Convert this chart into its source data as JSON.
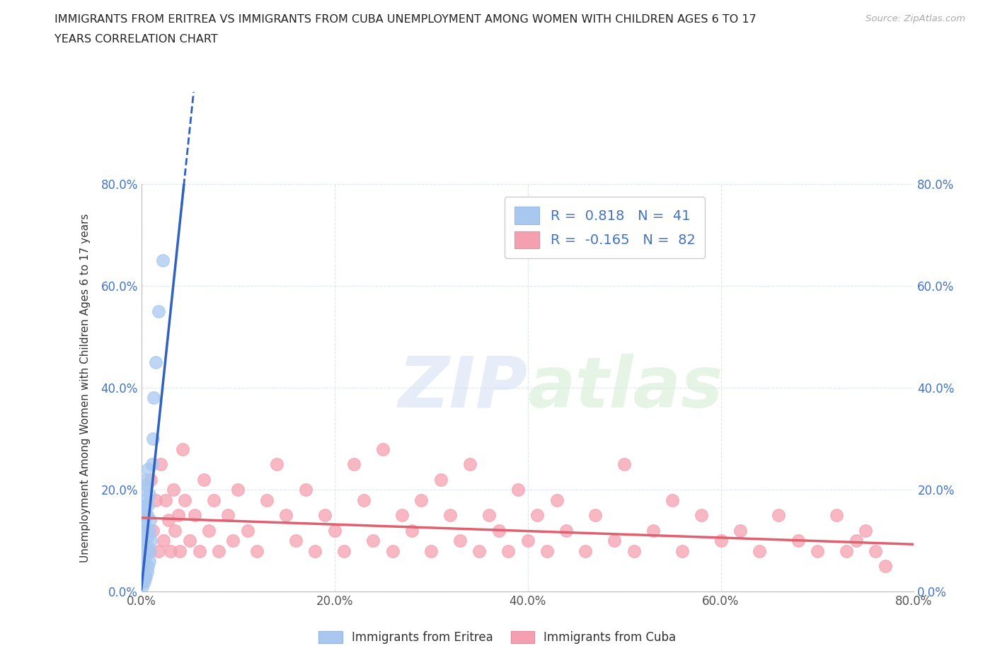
{
  "title_line1": "IMMIGRANTS FROM ERITREA VS IMMIGRANTS FROM CUBA UNEMPLOYMENT AMONG WOMEN WITH CHILDREN AGES 6 TO 17",
  "title_line2": "YEARS CORRELATION CHART",
  "source": "Source: ZipAtlas.com",
  "ylabel": "Unemployment Among Women with Children Ages 6 to 17 years",
  "xlim": [
    0.0,
    0.8
  ],
  "ylim": [
    0.0,
    0.8
  ],
  "xticks": [
    0.0,
    0.2,
    0.4,
    0.6,
    0.8
  ],
  "yticks": [
    0.0,
    0.2,
    0.4,
    0.6,
    0.8
  ],
  "tick_labels": [
    "0.0%",
    "20.0%",
    "40.0%",
    "60.0%",
    "80.0%"
  ],
  "eritrea_color": "#a8c8f0",
  "cuba_color": "#f5a0b0",
  "eritrea_R": 0.818,
  "eritrea_N": 41,
  "cuba_R": -0.165,
  "cuba_N": 82,
  "eritrea_line_color": "#3060c0",
  "cuba_line_color": "#e06070",
  "background_color": "#ffffff",
  "grid_color": "#d8e0f0",
  "watermark": "ZIPatlas",
  "legend_eritrea": "Immigrants from Eritrea",
  "legend_cuba": "Immigrants from Cuba",
  "eritrea_slope": 18.0,
  "eritrea_intercept": 0.005,
  "cuba_slope": -0.065,
  "cuba_intercept": 0.145,
  "eritrea_x": [
    0.001,
    0.001,
    0.001,
    0.002,
    0.002,
    0.002,
    0.002,
    0.003,
    0.003,
    0.003,
    0.003,
    0.003,
    0.004,
    0.004,
    0.004,
    0.004,
    0.005,
    0.005,
    0.005,
    0.005,
    0.005,
    0.006,
    0.006,
    0.006,
    0.006,
    0.007,
    0.007,
    0.007,
    0.007,
    0.008,
    0.008,
    0.008,
    0.009,
    0.009,
    0.01,
    0.011,
    0.012,
    0.013,
    0.015,
    0.018,
    0.022
  ],
  "eritrea_y": [
    0.01,
    0.04,
    0.07,
    0.02,
    0.05,
    0.09,
    0.13,
    0.02,
    0.06,
    0.1,
    0.15,
    0.2,
    0.03,
    0.08,
    0.13,
    0.18,
    0.03,
    0.07,
    0.12,
    0.17,
    0.22,
    0.04,
    0.09,
    0.15,
    0.21,
    0.05,
    0.11,
    0.17,
    0.24,
    0.06,
    0.12,
    0.19,
    0.08,
    0.14,
    0.1,
    0.25,
    0.3,
    0.38,
    0.45,
    0.55,
    0.65
  ],
  "cuba_x": [
    0.005,
    0.008,
    0.01,
    0.012,
    0.015,
    0.018,
    0.02,
    0.023,
    0.025,
    0.028,
    0.03,
    0.033,
    0.035,
    0.038,
    0.04,
    0.043,
    0.045,
    0.05,
    0.055,
    0.06,
    0.065,
    0.07,
    0.075,
    0.08,
    0.09,
    0.095,
    0.1,
    0.11,
    0.12,
    0.13,
    0.14,
    0.15,
    0.16,
    0.17,
    0.18,
    0.19,
    0.2,
    0.21,
    0.22,
    0.23,
    0.24,
    0.25,
    0.26,
    0.27,
    0.28,
    0.29,
    0.3,
    0.31,
    0.32,
    0.33,
    0.34,
    0.35,
    0.36,
    0.37,
    0.38,
    0.39,
    0.4,
    0.41,
    0.42,
    0.43,
    0.44,
    0.46,
    0.47,
    0.49,
    0.5,
    0.51,
    0.53,
    0.55,
    0.56,
    0.58,
    0.6,
    0.62,
    0.64,
    0.66,
    0.68,
    0.7,
    0.72,
    0.73,
    0.74,
    0.75,
    0.76,
    0.77
  ],
  "cuba_y": [
    0.15,
    0.08,
    0.22,
    0.12,
    0.18,
    0.08,
    0.25,
    0.1,
    0.18,
    0.14,
    0.08,
    0.2,
    0.12,
    0.15,
    0.08,
    0.28,
    0.18,
    0.1,
    0.15,
    0.08,
    0.22,
    0.12,
    0.18,
    0.08,
    0.15,
    0.1,
    0.2,
    0.12,
    0.08,
    0.18,
    0.25,
    0.15,
    0.1,
    0.2,
    0.08,
    0.15,
    0.12,
    0.08,
    0.25,
    0.18,
    0.1,
    0.28,
    0.08,
    0.15,
    0.12,
    0.18,
    0.08,
    0.22,
    0.15,
    0.1,
    0.25,
    0.08,
    0.15,
    0.12,
    0.08,
    0.2,
    0.1,
    0.15,
    0.08,
    0.18,
    0.12,
    0.08,
    0.15,
    0.1,
    0.25,
    0.08,
    0.12,
    0.18,
    0.08,
    0.15,
    0.1,
    0.12,
    0.08,
    0.15,
    0.1,
    0.08,
    0.15,
    0.08,
    0.1,
    0.12,
    0.08,
    0.05
  ]
}
